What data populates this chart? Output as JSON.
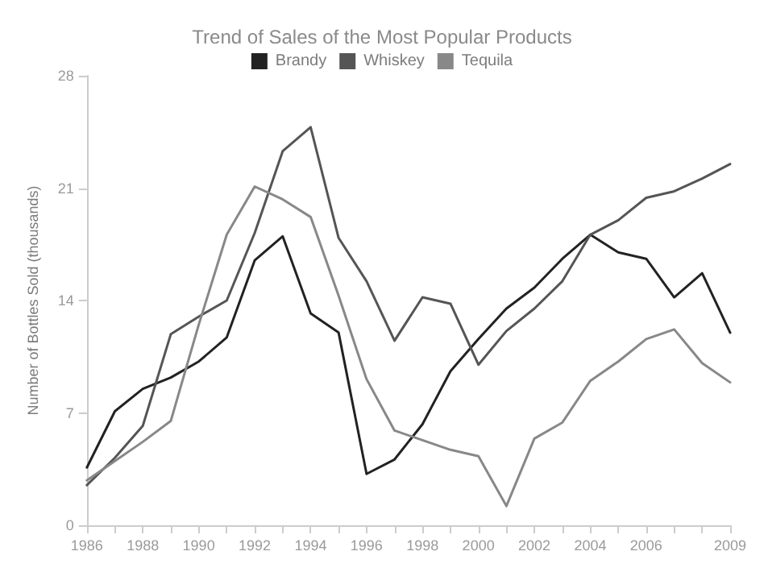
{
  "chart_data": {
    "type": "line",
    "title": "Trend of Sales of the Most Popular Products",
    "ylabel": "Number of Bottles Sold (thousands)",
    "x": [
      1986,
      1987,
      1988,
      1989,
      1990,
      1991,
      1992,
      1993,
      1994,
      1995,
      1996,
      1997,
      1998,
      1999,
      2000,
      2001,
      2002,
      2003,
      2004,
      2005,
      2006,
      2007,
      2008,
      2009
    ],
    "series": [
      {
        "name": "Brandy",
        "color": "#222222",
        "values": [
          3.6,
          7.1,
          8.5,
          9.2,
          10.2,
          11.7,
          16.5,
          18.0,
          13.2,
          12.0,
          3.2,
          4.1,
          6.3,
          9.6,
          11.6,
          13.5,
          14.8,
          16.6,
          18.1,
          17.0,
          16.6,
          14.2,
          15.7,
          12.0
        ]
      },
      {
        "name": "Whiskey",
        "color": "#555555",
        "values": [
          2.5,
          4.2,
          6.2,
          11.9,
          13.0,
          14.0,
          18.2,
          23.3,
          24.8,
          17.9,
          15.2,
          11.5,
          14.2,
          13.8,
          10.0,
          12.1,
          13.5,
          15.2,
          18.1,
          19.0,
          20.4,
          20.8,
          21.6,
          22.5
        ]
      },
      {
        "name": "Tequila",
        "color": "#888888",
        "values": [
          2.8,
          4.0,
          5.2,
          6.5,
          12.5,
          18.1,
          21.1,
          20.3,
          19.2,
          14.3,
          9.1,
          5.9,
          5.3,
          4.7,
          4.3,
          1.2,
          5.4,
          6.4,
          9.0,
          10.2,
          11.6,
          12.2,
          10.1,
          8.9
        ]
      }
    ],
    "xlim": [
      1986,
      2009
    ],
    "xticks": [
      1986,
      {
        "value": 1987,
        "label": null
      },
      1988,
      {
        "value": 1989,
        "label": null
      },
      1990,
      {
        "value": 1991,
        "label": null
      },
      1992,
      {
        "value": 1993,
        "label": null
      },
      1994,
      {
        "value": 1995,
        "label": null
      },
      1996,
      {
        "value": 1997,
        "label": null
      },
      1998,
      {
        "value": 1999,
        "label": null
      },
      2000,
      {
        "value": 2001,
        "label": null
      },
      2002,
      {
        "value": 2003,
        "label": null
      },
      2004,
      {
        "value": 2005,
        "label": null
      },
      2006,
      {
        "value": 2007,
        "label": null
      },
      {
        "value": 2008,
        "label": null
      },
      2009
    ],
    "ylim": [
      0,
      28
    ],
    "yticks": [
      0,
      7,
      14,
      21,
      28
    ],
    "legend": "top",
    "marker": "none",
    "line_style": "solid"
  }
}
